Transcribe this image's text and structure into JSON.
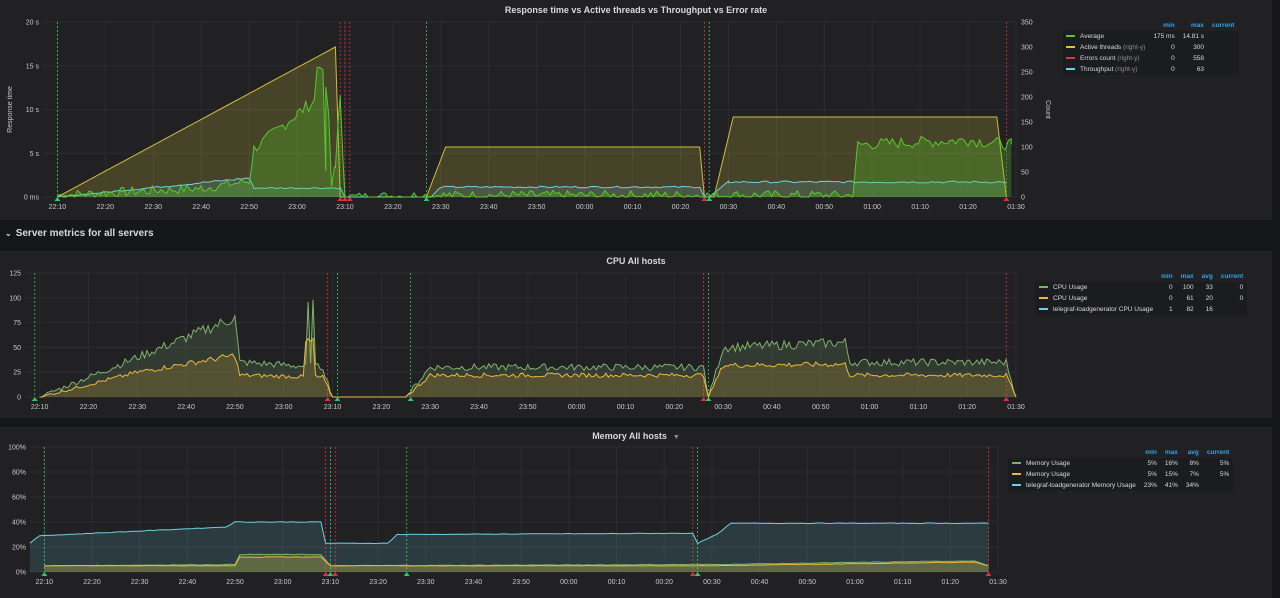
{
  "panels": {
    "response": {
      "title": "Response time vs Active threads vs Throughput vs Error rate",
      "ylabel_left": "Response time",
      "ylabel_right": "Count",
      "left_ticks": [
        "0 ms",
        "5 s",
        "10 s",
        "15 s",
        "20 s"
      ],
      "right_ticks": [
        "0",
        "50",
        "100",
        "150",
        "200",
        "250",
        "300",
        "350"
      ],
      "x_ticks": [
        "22:10",
        "22:20",
        "22:30",
        "22:40",
        "22:50",
        "23:00",
        "23:10",
        "23:20",
        "23:30",
        "23:40",
        "23:50",
        "00:00",
        "00:10",
        "00:20",
        "00:30",
        "00:40",
        "00:50",
        "01:00",
        "01:10",
        "01:20",
        "01:30"
      ],
      "legend": {
        "headers": [
          "min",
          "max",
          "current"
        ],
        "rows": [
          {
            "name": "Average",
            "suffix": "",
            "min": "175 ms",
            "max": "14.81 s",
            "current": "",
            "color": "#56c92a"
          },
          {
            "name": "Active threads",
            "suffix": "(right-y)",
            "min": "0",
            "max": "300",
            "current": "",
            "color": "#e0c33a"
          },
          {
            "name": "Errors count",
            "suffix": "(right-y)",
            "min": "0",
            "max": "558",
            "current": "",
            "color": "#d63a3a"
          },
          {
            "name": "Throughput",
            "suffix": "(right-y)",
            "min": "0",
            "max": "63",
            "current": "",
            "color": "#6ed0e0"
          }
        ]
      }
    },
    "row_header": "Server metrics for all servers",
    "cpu": {
      "title": "CPU All hosts",
      "left_ticks": [
        "0",
        "25",
        "50",
        "75",
        "100",
        "125"
      ],
      "x_ticks": [
        "22:10",
        "22:20",
        "22:30",
        "22:40",
        "22:50",
        "23:00",
        "23:10",
        "23:20",
        "23:30",
        "23:40",
        "23:50",
        "00:00",
        "00:10",
        "00:20",
        "00:30",
        "00:40",
        "00:50",
        "01:00",
        "01:10",
        "01:20",
        "01:30"
      ],
      "legend": {
        "headers": [
          "min",
          "max",
          "avg",
          "current"
        ],
        "rows": [
          {
            "name": "CPU Usage",
            "min": "0",
            "max": "100",
            "avg": "33",
            "current": "0",
            "color": "#7eb26d"
          },
          {
            "name": "CPU Usage",
            "min": "0",
            "max": "61",
            "avg": "20",
            "current": "0",
            "color": "#eab839"
          },
          {
            "name": "telegraf-loadgenerator CPU Usage",
            "min": "1",
            "max": "82",
            "avg": "16",
            "current": "",
            "color": "#6ed0e0"
          }
        ]
      }
    },
    "memory": {
      "title": "Memory All hosts",
      "left_ticks": [
        "0%",
        "20%",
        "40%",
        "60%",
        "80%",
        "100%"
      ],
      "x_ticks": [
        "22:10",
        "22:20",
        "22:30",
        "22:40",
        "22:50",
        "23:00",
        "23:10",
        "23:20",
        "23:30",
        "23:40",
        "23:50",
        "00:00",
        "00:10",
        "00:20",
        "00:30",
        "00:40",
        "00:50",
        "01:00",
        "01:10",
        "01:20",
        "01:30"
      ],
      "legend": {
        "headers": [
          "min",
          "max",
          "avg",
          "current"
        ],
        "rows": [
          {
            "name": "Memory Usage",
            "min": "5%",
            "max": "16%",
            "avg": "8%",
            "current": "5%",
            "color": "#7eb26d"
          },
          {
            "name": "Memory Usage",
            "min": "5%",
            "max": "15%",
            "avg": "7%",
            "current": "5%",
            "color": "#eab839"
          },
          {
            "name": "telegraf-loadgenerator Memory Usage",
            "min": "23%",
            "max": "41%",
            "avg": "34%",
            "current": "",
            "color": "#6ed0e0"
          }
        ]
      }
    }
  },
  "chart_data": [
    {
      "type": "line",
      "title": "Response time vs Active threads vs Throughput vs Error rate",
      "ylabel": "Response time",
      "y2label": "Count",
      "ylim": [
        0,
        20
      ],
      "y2lim": [
        0,
        350
      ],
      "series": [
        {
          "name": "Average",
          "axis": "left",
          "points": [
            [
              "22:10",
              0.2
            ],
            [
              "22:40",
              1.0
            ],
            [
              "22:50",
              1.8
            ],
            [
              "22:51",
              5.5
            ],
            [
              "23:00",
              9.5
            ],
            [
              "23:06",
              12
            ],
            [
              "23:08",
              3
            ],
            [
              "23:09",
              12
            ],
            [
              "23:10",
              0
            ],
            [
              "23:30",
              0.2
            ],
            [
              "00:25",
              0.2
            ],
            [
              "00:30",
              0.2
            ],
            [
              "00:56",
              0.2
            ],
            [
              "00:57",
              6
            ],
            [
              "01:20",
              6.5
            ],
            [
              "01:29",
              6
            ]
          ]
        },
        {
          "name": "Active threads",
          "axis": "right",
          "points": [
            [
              "22:10",
              0
            ],
            [
              "23:08",
              300
            ],
            [
              "23:09",
              300
            ],
            [
              "23:09",
              0
            ],
            [
              "23:27",
              0
            ],
            [
              "23:31",
              100
            ],
            [
              "00:24",
              100
            ],
            [
              "00:25",
              0
            ],
            [
              "00:27",
              0
            ],
            [
              "00:31",
              160
            ],
            [
              "01:28",
              160
            ],
            [
              "01:28",
              0
            ]
          ]
        },
        {
          "name": "Throughput",
          "axis": "right",
          "points": [
            [
              "22:10",
              0
            ],
            [
              "22:50",
              38
            ],
            [
              "22:51",
              18
            ],
            [
              "23:09",
              18
            ],
            [
              "23:10",
              0
            ],
            [
              "23:28",
              0
            ],
            [
              "23:30",
              20
            ],
            [
              "00:24",
              20
            ],
            [
              "00:25",
              0
            ],
            [
              "00:26",
              0
            ],
            [
              "00:30",
              30
            ],
            [
              "01:28",
              30
            ]
          ]
        }
      ]
    },
    {
      "type": "line",
      "title": "CPU All hosts",
      "ylim": [
        0,
        125
      ],
      "series": [
        {
          "name": "CPU Usage",
          "points": [
            [
              "22:10",
              0
            ],
            [
              "22:30",
              40
            ],
            [
              "22:50",
              80
            ],
            [
              "22:51",
              35
            ],
            [
              "23:08",
              30
            ],
            [
              "23:10",
              0
            ],
            [
              "23:25",
              0
            ],
            [
              "23:30",
              30
            ],
            [
              "00:26",
              30
            ],
            [
              "00:27",
              0
            ],
            [
              "00:30",
              50
            ],
            [
              "00:55",
              55
            ],
            [
              "00:56",
              35
            ],
            [
              "01:28",
              35
            ],
            [
              "01:30",
              0
            ]
          ]
        },
        {
          "name": "CPU Usage",
          "points": [
            [
              "22:10",
              0
            ],
            [
              "22:30",
              25
            ],
            [
              "22:50",
              42
            ],
            [
              "22:51",
              22
            ],
            [
              "23:08",
              20
            ],
            [
              "23:10",
              0
            ],
            [
              "23:25",
              0
            ],
            [
              "23:30",
              22
            ],
            [
              "00:26",
              22
            ],
            [
              "00:27",
              0
            ],
            [
              "00:30",
              32
            ],
            [
              "00:55",
              33
            ],
            [
              "00:56",
              22
            ],
            [
              "01:28",
              22
            ],
            [
              "01:30",
              0
            ]
          ]
        }
      ]
    },
    {
      "type": "area",
      "title": "Memory All hosts",
      "ylim": [
        0,
        100
      ],
      "series": [
        {
          "name": "Memory Usage",
          "points": [
            [
              "22:10",
              5
            ],
            [
              "22:50",
              6
            ],
            [
              "22:51",
              14
            ],
            [
              "23:08",
              14
            ],
            [
              "23:10",
              5
            ],
            [
              "00:26",
              6
            ],
            [
              "00:30",
              6
            ],
            [
              "01:25",
              9
            ],
            [
              "01:28",
              5
            ]
          ]
        },
        {
          "name": "Memory Usage",
          "points": [
            [
              "22:10",
              5
            ],
            [
              "22:50",
              5
            ],
            [
              "22:51",
              12
            ],
            [
              "23:08",
              12
            ],
            [
              "23:10",
              5
            ],
            [
              "00:26",
              5
            ],
            [
              "00:30",
              5
            ],
            [
              "01:25",
              8
            ],
            [
              "01:28",
              5
            ]
          ]
        },
        {
          "name": "telegraf-loadgenerator Memory Usage",
          "points": [
            [
              "22:07",
              23
            ],
            [
              "22:09",
              29
            ],
            [
              "22:48",
              36
            ],
            [
              "22:50",
              40
            ],
            [
              "23:08",
              40
            ],
            [
              "23:09",
              23
            ],
            [
              "23:22",
              23
            ],
            [
              "23:24",
              30
            ],
            [
              "00:26",
              31
            ],
            [
              "00:27",
              23
            ],
            [
              "00:31",
              30
            ],
            [
              "00:34",
              39
            ],
            [
              "01:28",
              39
            ]
          ]
        }
      ]
    }
  ]
}
